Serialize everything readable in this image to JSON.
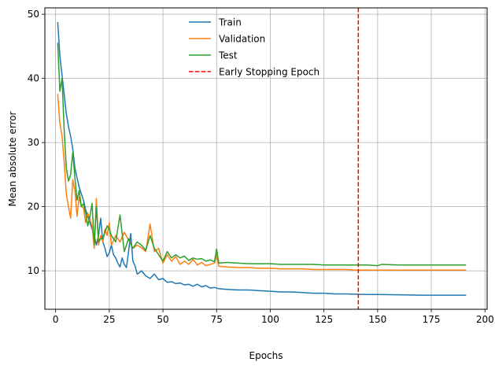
{
  "chart_data": {
    "type": "line",
    "title": "",
    "xlabel": "Epochs",
    "ylabel": "Mean absolute error",
    "xlim": [
      -5,
      201
    ],
    "ylim": [
      4,
      51
    ],
    "xticks": [
      0,
      25,
      50,
      75,
      100,
      125,
      150,
      175,
      200
    ],
    "yticks": [
      10,
      20,
      30,
      40,
      50
    ],
    "grid": true,
    "legend_position": "top-center",
    "series": [
      {
        "name": "Train",
        "color": "#1f77b4",
        "style": "solid",
        "x": [
          1,
          2,
          3,
          4,
          5,
          6,
          7,
          8,
          9,
          10,
          11,
          12,
          13,
          14,
          15,
          16,
          17,
          18,
          19,
          20,
          21,
          22,
          23,
          24,
          25,
          26,
          27,
          28,
          29,
          30,
          31,
          32,
          33,
          34,
          35,
          36,
          37,
          38,
          39,
          40,
          42,
          44,
          46,
          48,
          50,
          52,
          54,
          56,
          58,
          60,
          62,
          64,
          66,
          68,
          70,
          72,
          74,
          76,
          80,
          85,
          90,
          95,
          100,
          105,
          110,
          115,
          120,
          125,
          130,
          135,
          140,
          145,
          150,
          160,
          170,
          180,
          191
        ],
        "y": [
          48.7,
          43.5,
          40.5,
          37.5,
          34.5,
          32.5,
          31.0,
          29.0,
          26.0,
          24.5,
          23.0,
          22.0,
          21.0,
          19.5,
          18.5,
          17.5,
          16.5,
          15.5,
          14.0,
          15.5,
          18.2,
          14.5,
          13.5,
          12.2,
          12.8,
          14.0,
          12.5,
          12.0,
          11.2,
          10.6,
          12.0,
          11.0,
          10.5,
          13.0,
          15.8,
          11.5,
          10.8,
          9.5,
          9.7,
          10.0,
          9.2,
          8.8,
          9.5,
          8.6,
          8.8,
          8.2,
          8.3,
          8.0,
          8.1,
          7.8,
          7.9,
          7.6,
          7.9,
          7.5,
          7.7,
          7.3,
          7.4,
          7.2,
          7.1,
          7.0,
          7.0,
          6.9,
          6.8,
          6.7,
          6.7,
          6.6,
          6.5,
          6.5,
          6.4,
          6.4,
          6.35,
          6.3,
          6.3,
          6.25,
          6.2,
          6.2,
          6.2
        ]
      },
      {
        "name": "Validation",
        "color": "#ff7f0e",
        "style": "solid",
        "x": [
          1,
          2,
          3,
          4,
          5,
          6,
          7,
          8,
          9,
          10,
          11,
          12,
          13,
          14,
          15,
          16,
          17,
          18,
          19,
          20,
          21,
          22,
          23,
          24,
          25,
          26,
          28,
          30,
          32,
          34,
          36,
          38,
          40,
          42,
          44,
          46,
          48,
          50,
          52,
          54,
          56,
          58,
          60,
          62,
          64,
          66,
          68,
          70,
          72,
          74,
          75,
          76,
          80,
          85,
          90,
          95,
          100,
          105,
          110,
          115,
          120,
          125,
          130,
          135,
          140,
          145,
          150,
          160,
          170,
          180,
          191
        ],
        "y": [
          37.5,
          33.0,
          31.0,
          27.0,
          22.0,
          20.0,
          18.2,
          24.2,
          22.5,
          18.5,
          21.5,
          20.0,
          19.8,
          17.5,
          19.0,
          18.0,
          17.0,
          13.5,
          21.3,
          14.0,
          15.5,
          14.5,
          16.5,
          15.5,
          17.5,
          14.0,
          15.5,
          14.5,
          16.0,
          14.8,
          13.5,
          14.0,
          13.6,
          13.0,
          17.3,
          13.0,
          13.5,
          11.2,
          12.5,
          11.5,
          12.2,
          11.0,
          11.5,
          11.0,
          11.8,
          10.9,
          11.3,
          10.8,
          11.0,
          11.2,
          12.5,
          10.7,
          10.6,
          10.5,
          10.5,
          10.4,
          10.4,
          10.3,
          10.3,
          10.3,
          10.2,
          10.2,
          10.2,
          10.2,
          10.1,
          10.1,
          10.1,
          10.1,
          10.1,
          10.1,
          10.1
        ]
      },
      {
        "name": "Test",
        "color": "#2ca02c",
        "style": "solid",
        "x": [
          1,
          2,
          3,
          4,
          5,
          6,
          7,
          8,
          9,
          10,
          11,
          12,
          13,
          14,
          15,
          16,
          17,
          18,
          19,
          20,
          21,
          22,
          23,
          24,
          25,
          26,
          28,
          30,
          32,
          34,
          36,
          38,
          40,
          42,
          44,
          46,
          48,
          50,
          52,
          54,
          56,
          58,
          60,
          62,
          64,
          66,
          68,
          70,
          72,
          74,
          75,
          76,
          80,
          85,
          90,
          95,
          100,
          105,
          110,
          115,
          120,
          125,
          130,
          135,
          140,
          145,
          150,
          152,
          160,
          170,
          180,
          191
        ],
        "y": [
          45.5,
          38.0,
          40.0,
          32.0,
          26.0,
          24.0,
          25.0,
          28.5,
          24.5,
          21.0,
          22.5,
          20.0,
          20.5,
          19.0,
          17.0,
          18.5,
          20.5,
          14.0,
          20.0,
          14.5,
          15.0,
          15.0,
          16.0,
          17.0,
          16.5,
          15.5,
          14.5,
          18.7,
          13.0,
          15.0,
          13.5,
          14.5,
          14.0,
          13.2,
          15.5,
          13.5,
          12.5,
          11.5,
          13.0,
          12.0,
          12.5,
          12.0,
          12.3,
          11.6,
          12.0,
          11.8,
          11.9,
          11.5,
          11.7,
          11.4,
          13.4,
          11.2,
          11.3,
          11.2,
          11.1,
          11.1,
          11.1,
          11.0,
          11.0,
          11.0,
          11.0,
          10.9,
          10.9,
          10.9,
          10.9,
          10.9,
          10.8,
          11.0,
          10.9,
          10.9,
          10.9,
          10.9
        ]
      },
      {
        "name": "Early Stopping Epoch",
        "color": "#ff0000",
        "style": "dashed",
        "vline_x": 141
      }
    ]
  }
}
